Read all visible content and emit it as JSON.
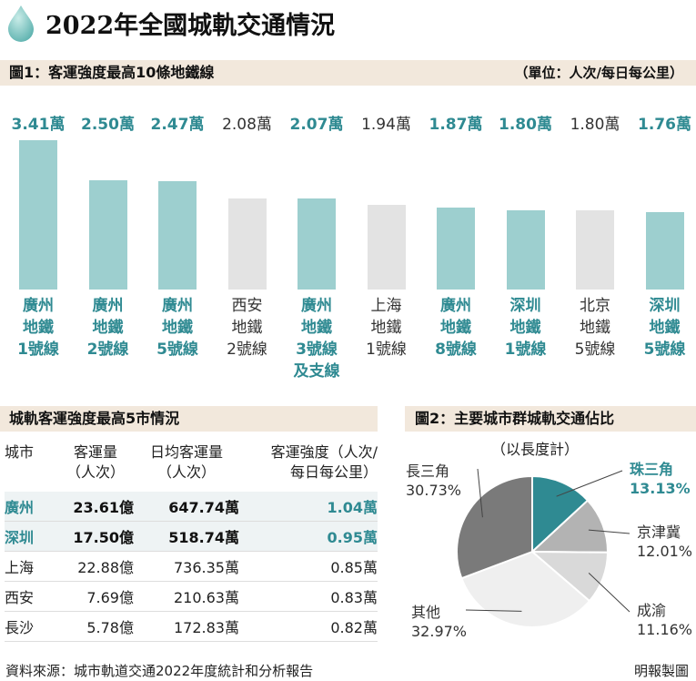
{
  "title": "2022年全國城軌交通情況",
  "fig1": {
    "title": "圖1：客運強度最高10條地鐵線",
    "unit": "（單位：人次/每日每公里）"
  },
  "table": {
    "title": "城軌客運強度最高5市情況",
    "headers": {
      "city": "城市",
      "volume": [
        "客運量",
        "（人次）"
      ],
      "daily": [
        "日均客運量",
        "（人次）"
      ],
      "intensity": [
        "客運強度（人次/",
        "每日每公里）"
      ]
    }
  },
  "fig2": {
    "title": "圖2：主要城市群城軌交通佔比",
    "subtitle": "（以長度計）"
  },
  "source": "資料來源：城市軌道交通2022年度統計和分析報告",
  "credit": "明報製圖",
  "colors": {
    "accent": "#2f8a92",
    "teal_bar": "#9dcfcf",
    "grey_bar": "#e3e3e3",
    "band": "#f2e8dc"
  },
  "chart_data": [
    {
      "type": "bar",
      "title": "圖1：客運強度最高10條地鐵線",
      "ylabel": "人次/每日每公里",
      "ylim": [
        0,
        3.41
      ],
      "categories": [
        "廣州地鐵1號線",
        "廣州地鐵2號線",
        "廣州地鐵5號線",
        "西安地鐵2號線",
        "廣州地鐵3號線及支線",
        "上海地鐵1號線",
        "廣州地鐵8號線",
        "深圳地鐵1號線",
        "北京地鐵5號線",
        "深圳地鐵5號線"
      ],
      "label_lines": [
        [
          "廣州",
          "地鐵",
          "1號線"
        ],
        [
          "廣州",
          "地鐵",
          "2號線"
        ],
        [
          "廣州",
          "地鐵",
          "5號線"
        ],
        [
          "西安",
          "地鐵",
          "2號線"
        ],
        [
          "廣州",
          "地鐵",
          "3號線",
          "及支線"
        ],
        [
          "上海",
          "地鐵",
          "1號線"
        ],
        [
          "廣州",
          "地鐵",
          "8號線"
        ],
        [
          "深圳",
          "地鐵",
          "1號線"
        ],
        [
          "北京",
          "地鐵",
          "5號線"
        ],
        [
          "深圳",
          "地鐵",
          "5號線"
        ]
      ],
      "values": [
        3.41,
        2.5,
        2.47,
        2.08,
        2.07,
        1.94,
        1.87,
        1.8,
        1.8,
        1.76
      ],
      "value_labels": [
        "3.41萬",
        "2.50萬",
        "2.47萬",
        "2.08萬",
        "2.07萬",
        "1.94萬",
        "1.87萬",
        "1.80萬",
        "1.80萬",
        "1.76萬"
      ],
      "highlight": [
        true,
        true,
        true,
        false,
        true,
        false,
        true,
        true,
        false,
        true
      ]
    },
    {
      "type": "table",
      "title": "城軌客運強度最高5市情況",
      "columns": [
        "城市",
        "客運量（人次）",
        "日均客運量（人次）",
        "客運強度（人次/每日每公里）"
      ],
      "rows": [
        {
          "city": "廣州",
          "volume": "23.61億",
          "daily": "647.74萬",
          "intensity": "1.04萬",
          "highlight": true
        },
        {
          "city": "深圳",
          "volume": "17.50億",
          "daily": "518.74萬",
          "intensity": "0.95萬",
          "highlight": true
        },
        {
          "city": "上海",
          "volume": "22.88億",
          "daily": "736.35萬",
          "intensity": "0.85萬",
          "highlight": false
        },
        {
          "city": "西安",
          "volume": "7.69億",
          "daily": "210.63萬",
          "intensity": "0.83萬",
          "highlight": false
        },
        {
          "city": "長沙",
          "volume": "5.78億",
          "daily": "172.83萬",
          "intensity": "0.82萬",
          "highlight": false
        }
      ]
    },
    {
      "type": "pie",
      "title": "圖2：主要城市群城軌交通佔比",
      "subtitle": "（以長度計）",
      "slices": [
        {
          "name": "珠三角",
          "value": 13.13,
          "label": "13.13%",
          "color": "#2f8a92",
          "highlight": true
        },
        {
          "name": "京津冀",
          "value": 12.01,
          "label": "12.01%",
          "color": "#b3b3b3",
          "highlight": false
        },
        {
          "name": "成渝",
          "value": 11.16,
          "label": "11.16%",
          "color": "#d9d9d9",
          "highlight": false
        },
        {
          "name": "其他",
          "value": 32.97,
          "label": "32.97%",
          "color": "#efefef",
          "highlight": false
        },
        {
          "name": "長三角",
          "value": 30.73,
          "label": "30.73%",
          "color": "#7a7a7a",
          "highlight": false
        }
      ]
    }
  ]
}
